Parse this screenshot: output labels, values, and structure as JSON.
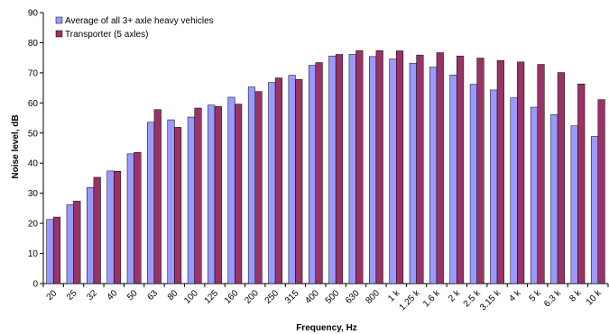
{
  "chart_data": {
    "type": "bar",
    "xlabel": "Frequency, Hz",
    "ylabel": "Noise level, dB",
    "ylim": [
      0,
      90
    ],
    "yticks": [
      0,
      10,
      20,
      30,
      40,
      50,
      60,
      70,
      80,
      90
    ],
    "grid": false,
    "legend_position": "top-left",
    "categories": [
      "20",
      "25",
      "32",
      "40",
      "50",
      "63",
      "80",
      "100",
      "125",
      "160",
      "200",
      "250",
      "315",
      "400",
      "500",
      "630",
      "800",
      "1 k",
      "1.25 k",
      "1.6 k",
      "2 k",
      "2.5 k",
      "3.15 k",
      "4 k",
      "5 k",
      "6.3 k",
      "8 k",
      "10 k"
    ],
    "series": [
      {
        "name": "Average of all 3+ axle heavy vehicles",
        "color": "#9999FF",
        "values": [
          21.3,
          26.2,
          31.9,
          37.4,
          43.1,
          53.6,
          54.4,
          55.3,
          59.3,
          61.9,
          65.3,
          66.8,
          69.2,
          72.5,
          75.6,
          76.1,
          75.4,
          74.6,
          73.2,
          71.9,
          69.3,
          66.2,
          64.3,
          61.7,
          58.6,
          56.1,
          52.4,
          48.9
        ]
      },
      {
        "name": "Transporter (5 axles)",
        "color": "#993366",
        "values": [
          22.1,
          27.4,
          35.3,
          37.3,
          43.6,
          57.8,
          51.9,
          58.3,
          58.8,
          59.6,
          63.8,
          68.3,
          67.8,
          73.4,
          76.1,
          77.4,
          77.4,
          77.3,
          75.9,
          76.7,
          75.6,
          74.9,
          74.1,
          73.6,
          72.8,
          70.1,
          66.3,
          61.1
        ]
      }
    ]
  }
}
